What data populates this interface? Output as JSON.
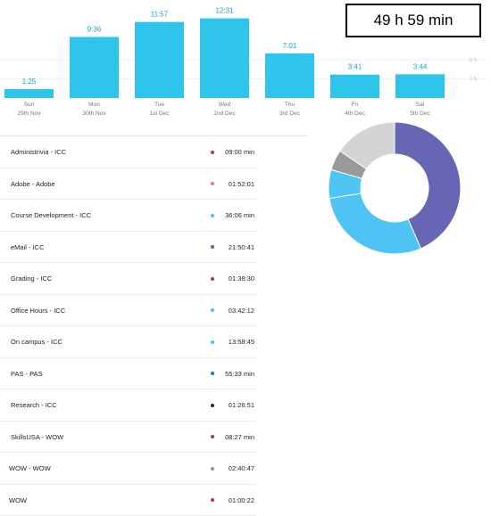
{
  "total": "49 h 59 min",
  "chart_data": {
    "type": "bar",
    "categories": [
      "Sun 29th Nov",
      "Mon 30th Nov",
      "Tue 1st Dec",
      "Wed 2nd Dec",
      "Thu 3rd Dec",
      "Fri 4th Dec",
      "Sat 5th Dec"
    ],
    "days": [
      {
        "day": "Sun",
        "date": "29th Nov",
        "label": "1:25",
        "hours": 1.417
      },
      {
        "day": "Mon",
        "date": "30th Nov",
        "label": "9:36",
        "hours": 9.6
      },
      {
        "day": "Tue",
        "date": "1st Dec",
        "label": "11:57",
        "hours": 11.95
      },
      {
        "day": "Wed",
        "date": "2nd Dec",
        "label": "12:31",
        "hours": 12.517
      },
      {
        "day": "Thu",
        "date": "3rd Dec",
        "label": "7:01",
        "hours": 7.017
      },
      {
        "day": "Fri",
        "date": "4th Dec",
        "label": "3:41",
        "hours": 3.683
      },
      {
        "day": "Sat",
        "date": "5th Dec",
        "label": "3:44",
        "hours": 3.733
      }
    ],
    "values": [
      1.417,
      9.6,
      11.95,
      12.517,
      7.017,
      3.683,
      3.733
    ],
    "y_ticks": [
      "6 h",
      "3 h"
    ],
    "ylim": [
      0,
      14
    ],
    "color": "#2fc4ea"
  },
  "projects": [
    {
      "name": "Administrivia - ICC",
      "time": "09:00 min",
      "color": "#a0405a"
    },
    {
      "name": "Adobe - Adobe",
      "time": "01:52:01",
      "color": "#e07a8a"
    },
    {
      "name": "Course Development - ICC",
      "time": "36:06 min",
      "color": "#4bc3f0"
    },
    {
      "name": "eMail - ICC",
      "time": "21:50:41",
      "color": "#5b5eb0"
    },
    {
      "name": "Grading - ICC",
      "time": "01:38:30",
      "color": "#a0405a"
    },
    {
      "name": "Office Hours - ICC",
      "time": "03:42:12",
      "color": "#4bc3f0"
    },
    {
      "name": "On campus - ICC",
      "time": "13:58:45",
      "color": "#4bc3f0"
    },
    {
      "name": "PAS - PAS",
      "time": "55:33 min",
      "color": "#1b7fae"
    },
    {
      "name": "Research - ICC",
      "time": "01:26:51",
      "color": "#0f2f58"
    },
    {
      "name": "SkillsUSA - WOW",
      "time": "08:27 min",
      "color": "#a0405a"
    },
    {
      "name": "WOW - WOW",
      "time": "02:40:47",
      "color": "#999999"
    },
    {
      "name": "WOW",
      "time": "01:00:22",
      "color": "#b03858"
    }
  ],
  "donut": {
    "segments": [
      {
        "value": 0.435,
        "color": "#6666b4"
      },
      {
        "value": 0.29,
        "color": "#4ec4f5"
      },
      {
        "value": 0.07,
        "color": "#4ec4f5"
      },
      {
        "value": 0.05,
        "color": "#9a9a9a"
      },
      {
        "value": 0.155,
        "color": "#d4d4d4"
      }
    ]
  }
}
